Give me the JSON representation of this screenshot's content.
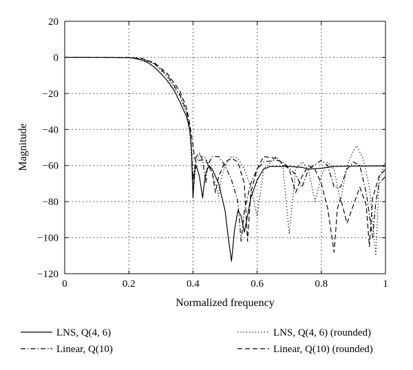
{
  "chart_data": {
    "type": "line",
    "title": "",
    "xlabel": "Normalized frequency",
    "ylabel": "Magnitude",
    "xlim": [
      0,
      1
    ],
    "ylim": [
      -120,
      20
    ],
    "x_ticks": [
      0,
      0.2,
      0.4,
      0.6,
      0.8,
      1
    ],
    "x_tick_labels": [
      "0",
      "0.2",
      "0.4",
      "0.6",
      "0.8",
      "1"
    ],
    "y_ticks": [
      20,
      0,
      -20,
      -40,
      -60,
      -80,
      -100,
      -120
    ],
    "y_tick_labels": [
      "20",
      "0",
      "−20",
      "−40",
      "−60",
      "−80",
      "−100",
      "−120"
    ],
    "grid": true,
    "legend_position": "below",
    "series": [
      {
        "name": "LNS, Q(4, 6)",
        "style": "solid",
        "color": "#000000",
        "points": [
          [
            0,
            0
          ],
          [
            0.15,
            0
          ],
          [
            0.2,
            -0.2
          ],
          [
            0.22,
            -0.6
          ],
          [
            0.24,
            -1.5
          ],
          [
            0.26,
            -3
          ],
          [
            0.28,
            -5.5
          ],
          [
            0.3,
            -9
          ],
          [
            0.32,
            -13
          ],
          [
            0.34,
            -18
          ],
          [
            0.36,
            -25
          ],
          [
            0.38,
            -33
          ],
          [
            0.39,
            -40
          ],
          [
            0.395,
            -50
          ],
          [
            0.4,
            -78
          ],
          [
            0.405,
            -63
          ],
          [
            0.41,
            -60
          ],
          [
            0.42,
            -66
          ],
          [
            0.43,
            -78
          ],
          [
            0.435,
            -70
          ],
          [
            0.44,
            -64
          ],
          [
            0.45,
            -60
          ],
          [
            0.46,
            -62
          ],
          [
            0.48,
            -70
          ],
          [
            0.5,
            -85
          ],
          [
            0.51,
            -100
          ],
          [
            0.52,
            -113
          ],
          [
            0.53,
            -95
          ],
          [
            0.54,
            -85
          ],
          [
            0.55,
            -88
          ],
          [
            0.56,
            -97
          ],
          [
            0.57,
            -88
          ],
          [
            0.58,
            -78
          ],
          [
            0.6,
            -68
          ],
          [
            0.62,
            -62
          ],
          [
            0.64,
            -60.5
          ],
          [
            0.7,
            -60.5
          ],
          [
            0.74,
            -61
          ],
          [
            0.76,
            -62
          ],
          [
            0.8,
            -61.5
          ],
          [
            0.84,
            -60.5
          ],
          [
            0.9,
            -60.3
          ],
          [
            1,
            -60.2
          ]
        ]
      },
      {
        "name": "Linear, Q(10)",
        "style": "dashdot",
        "color": "#000000",
        "points": [
          [
            0,
            0
          ],
          [
            0.2,
            -0.1
          ],
          [
            0.24,
            -0.8
          ],
          [
            0.28,
            -3.5
          ],
          [
            0.32,
            -10
          ],
          [
            0.36,
            -21
          ],
          [
            0.38,
            -30
          ],
          [
            0.39,
            -40
          ],
          [
            0.395,
            -50
          ],
          [
            0.4,
            -68
          ],
          [
            0.41,
            -55
          ],
          [
            0.42,
            -53
          ],
          [
            0.43,
            -57
          ],
          [
            0.44,
            -70
          ],
          [
            0.445,
            -60
          ],
          [
            0.46,
            -55
          ],
          [
            0.48,
            -55
          ],
          [
            0.5,
            -60
          ],
          [
            0.52,
            -68
          ],
          [
            0.54,
            -80
          ],
          [
            0.55,
            -102
          ],
          [
            0.56,
            -85
          ],
          [
            0.58,
            -70
          ],
          [
            0.6,
            -62
          ],
          [
            0.62,
            -58
          ],
          [
            0.66,
            -57
          ],
          [
            0.68,
            -58
          ],
          [
            0.72,
            -65
          ],
          [
            0.74,
            -72
          ],
          [
            0.76,
            -62
          ],
          [
            0.8,
            -57
          ],
          [
            0.82,
            -60
          ],
          [
            0.84,
            -72
          ],
          [
            0.86,
            -72
          ],
          [
            0.88,
            -62
          ],
          [
            0.9,
            -58
          ],
          [
            0.92,
            -60
          ],
          [
            0.94,
            -75
          ],
          [
            0.96,
            -100
          ],
          [
            0.97,
            -80
          ],
          [
            0.98,
            -70
          ],
          [
            1,
            -66
          ]
        ]
      },
      {
        "name": "LNS, Q(4, 6) (rounded)",
        "style": "dotted",
        "color": "#000000",
        "points": [
          [
            0,
            0
          ],
          [
            0.2,
            -0.1
          ],
          [
            0.24,
            -0.9
          ],
          [
            0.28,
            -3.8
          ],
          [
            0.32,
            -11
          ],
          [
            0.36,
            -22
          ],
          [
            0.38,
            -31
          ],
          [
            0.39,
            -42
          ],
          [
            0.395,
            -54
          ],
          [
            0.4,
            -76
          ],
          [
            0.41,
            -58
          ],
          [
            0.42,
            -54
          ],
          [
            0.44,
            -56
          ],
          [
            0.46,
            -64
          ],
          [
            0.48,
            -77
          ],
          [
            0.49,
            -66
          ],
          [
            0.5,
            -60
          ],
          [
            0.52,
            -55
          ],
          [
            0.54,
            -56
          ],
          [
            0.56,
            -62
          ],
          [
            0.58,
            -72
          ],
          [
            0.6,
            -88
          ],
          [
            0.61,
            -75
          ],
          [
            0.62,
            -62
          ],
          [
            0.66,
            -55
          ],
          [
            0.68,
            -60
          ],
          [
            0.7,
            -98
          ],
          [
            0.71,
            -80
          ],
          [
            0.72,
            -62
          ],
          [
            0.74,
            -58
          ],
          [
            0.76,
            -62
          ],
          [
            0.78,
            -80
          ],
          [
            0.8,
            -66
          ],
          [
            0.82,
            -58
          ],
          [
            0.84,
            -62
          ],
          [
            0.86,
            -80
          ],
          [
            0.88,
            -60
          ],
          [
            0.9,
            -52
          ],
          [
            0.91,
            -49
          ],
          [
            0.93,
            -56
          ],
          [
            0.95,
            -72
          ],
          [
            0.97,
            -110
          ],
          [
            0.98,
            -68
          ],
          [
            1,
            -58
          ]
        ]
      },
      {
        "name": "Linear, Q(10) (rounded)",
        "style": "dashed",
        "color": "#000000",
        "points": [
          [
            0,
            0
          ],
          [
            0.2,
            0
          ],
          [
            0.24,
            -0.6
          ],
          [
            0.28,
            -3
          ],
          [
            0.32,
            -9
          ],
          [
            0.36,
            -19
          ],
          [
            0.38,
            -28
          ],
          [
            0.39,
            -37
          ],
          [
            0.4,
            -49
          ],
          [
            0.405,
            -56
          ],
          [
            0.41,
            -58
          ],
          [
            0.42,
            -57
          ],
          [
            0.44,
            -57
          ],
          [
            0.46,
            -64
          ],
          [
            0.47,
            -75
          ],
          [
            0.48,
            -66
          ],
          [
            0.5,
            -58
          ],
          [
            0.52,
            -56
          ],
          [
            0.54,
            -58
          ],
          [
            0.56,
            -70
          ],
          [
            0.57,
            -102
          ],
          [
            0.58,
            -75
          ],
          [
            0.6,
            -62
          ],
          [
            0.62,
            -55
          ],
          [
            0.66,
            -56
          ],
          [
            0.7,
            -62
          ],
          [
            0.72,
            -75
          ],
          [
            0.74,
            -66
          ],
          [
            0.76,
            -60
          ],
          [
            0.78,
            -62
          ],
          [
            0.8,
            -70
          ],
          [
            0.82,
            -84
          ],
          [
            0.84,
            -108
          ],
          [
            0.85,
            -84
          ],
          [
            0.86,
            -78
          ],
          [
            0.88,
            -92
          ],
          [
            0.9,
            -82
          ],
          [
            0.92,
            -72
          ],
          [
            0.94,
            -82
          ],
          [
            0.95,
            -105
          ],
          [
            0.96,
            -78
          ],
          [
            0.98,
            -66
          ],
          [
            1,
            -62
          ]
        ]
      }
    ]
  }
}
